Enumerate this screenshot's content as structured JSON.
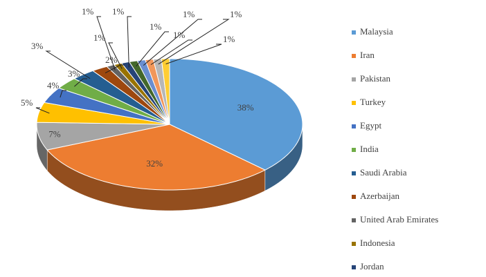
{
  "chart_data": {
    "type": "pie",
    "categories": [
      "Malaysia",
      "Iran",
      "Pakistan",
      "Turkey",
      "Egypt",
      "India",
      "Saudi Arabia",
      "Azerbaijan",
      "United Arab Emirates",
      "Indonesia",
      "Jordan",
      null,
      null,
      null,
      null,
      null
    ],
    "values": [
      38,
      32,
      7,
      5,
      4,
      3,
      3,
      2,
      1,
      1,
      1,
      1,
      1,
      1,
      1,
      1
    ],
    "value_labels": [
      "38%",
      "32%",
      "7%",
      "5%",
      "4%",
      "3%",
      "3%",
      "2%",
      "1%",
      "1%",
      "1%",
      "1%",
      "1%",
      "1%",
      "1%",
      "1%"
    ],
    "colors": [
      "#5b9bd5",
      "#ed7d31",
      "#a5a5a5",
      "#ffc000",
      "#4472c4",
      "#70ad47",
      "#255e91",
      "#9e480e",
      "#636363",
      "#997300",
      "#264478",
      "#43682b",
      "#698ed0",
      "#f1975a",
      "#b7b7b7",
      "#ffcd33"
    ],
    "legend": "right"
  }
}
